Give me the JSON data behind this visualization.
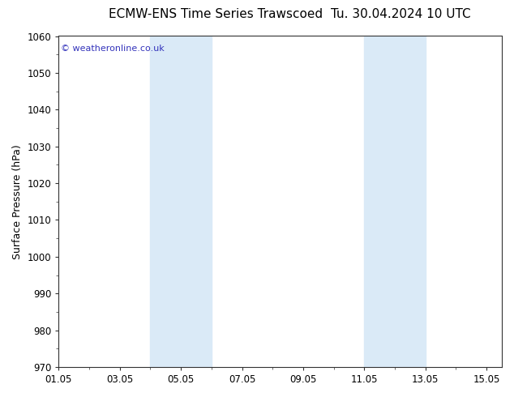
{
  "title_left": "ECMW-ENS Time Series Trawscoed",
  "title_right": "Tu. 30.04.2024 10 UTC",
  "ylabel": "Surface Pressure (hPa)",
  "ylim": [
    970,
    1060
  ],
  "ytick_step": 10,
  "bg_color": "#ffffff",
  "plot_bg_color": "#ffffff",
  "shade_color": "#daeaf7",
  "shade_regions": [
    [
      4.0,
      5.0
    ],
    [
      5.0,
      6.0
    ],
    [
      11.0,
      12.0
    ],
    [
      12.0,
      13.0
    ]
  ],
  "xtick_labels": [
    "01.05",
    "03.05",
    "05.05",
    "07.05",
    "09.05",
    "11.05",
    "13.05",
    "15.05"
  ],
  "xtick_positions": [
    1.0,
    3.0,
    5.0,
    7.0,
    9.0,
    11.0,
    13.0,
    15.0
  ],
  "xlim": [
    1.0,
    15.5
  ],
  "watermark": "© weatheronline.co.uk",
  "watermark_color": "#3333bb",
  "title_fontsize": 11,
  "ylabel_fontsize": 9,
  "tick_fontsize": 8.5,
  "border_color": "#333333"
}
